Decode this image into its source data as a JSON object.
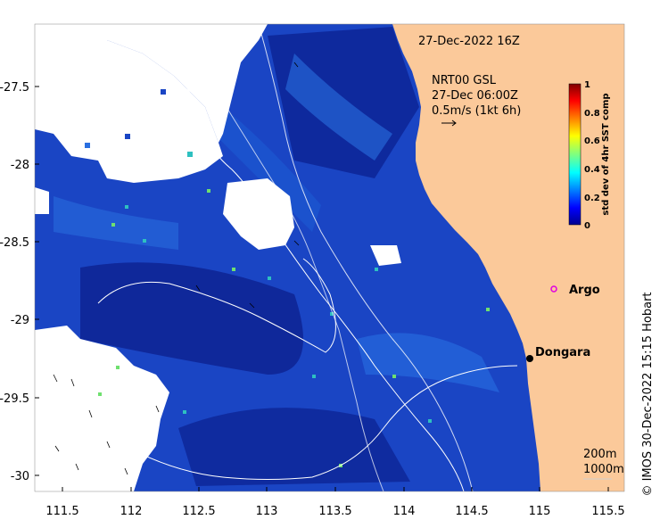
{
  "map": {
    "datetime_label": "27-Dec-2022 16Z",
    "current_info": {
      "line1": "NRT00 GSL",
      "line2": "27-Dec 06:00Z",
      "line3": "0.5m/s (1kt 6h)"
    },
    "lon_ticks": [
      "111.5",
      "112",
      "112.5",
      "113",
      "113.5",
      "114",
      "114.5",
      "115",
      "115.5"
    ],
    "lat_ticks": [
      "-27.5",
      "-28",
      "-28.5",
      "-29",
      "-29.5",
      "-30"
    ],
    "places": [
      {
        "name": "Argo",
        "marker": "open-circle",
        "color": "#e000e0"
      },
      {
        "name": "Dongara",
        "marker": "filled-dot",
        "color": "#000000"
      }
    ],
    "depth_labels": [
      "200m",
      "1000m"
    ],
    "credit": "© IMOS 30-Dec-2022 15:15 Hobart",
    "colors": {
      "land": "#fbc99a",
      "no_data": "#ffffff",
      "ocean_low": "#0a1a8c",
      "ocean_mid": "#1f6bd6",
      "ocean_high": "#2ec0c0",
      "contour": "#ffffff"
    }
  },
  "colorbar": {
    "label": "std dev of 4hr SST comp",
    "ticks": [
      "0",
      "0.2",
      "0.4",
      "0.6",
      "0.8",
      "1"
    ],
    "range": [
      0,
      1
    ],
    "colormap": "jet"
  }
}
